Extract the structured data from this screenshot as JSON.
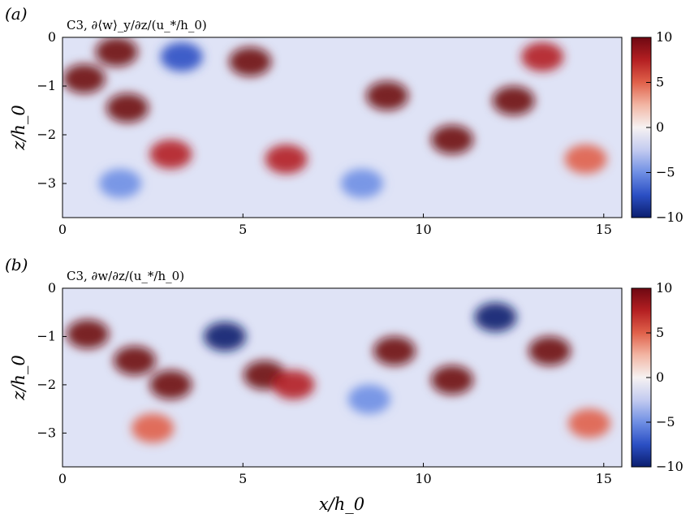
{
  "colors": {
    "colormap": [
      "#0b1e6e",
      "#2b4fc4",
      "#6f8fe4",
      "#c3cbf0",
      "#f6f2f2",
      "#f2b6a4",
      "#e0614a",
      "#b41f22",
      "#6e0812"
    ],
    "frame": "#000000",
    "background": "#ffffff"
  },
  "chart_data": [
    {
      "type": "heatmap",
      "panel": "(a)",
      "title": "C3, ∂⟨w⟩_y/∂z/(u_*/h_0)",
      "xlabel": "",
      "ylabel": "z/h_0",
      "xlim": [
        0,
        15.5
      ],
      "ylim": [
        -3.7,
        0
      ],
      "xticks": [
        0,
        5,
        10,
        15
      ],
      "yticks": [
        0,
        -1,
        -2,
        -3
      ],
      "colorbar": {
        "range": [
          -10,
          10
        ],
        "ticks": [
          10,
          5,
          0,
          -5,
          -10
        ]
      },
      "features": [
        {
          "x": 0.6,
          "z": -0.85,
          "value": 10
        },
        {
          "x": 1.8,
          "z": -1.45,
          "value": 10
        },
        {
          "x": 1.5,
          "z": -0.3,
          "value": 9
        },
        {
          "x": 3.3,
          "z": -0.4,
          "value": -8
        },
        {
          "x": 3.0,
          "z": -2.4,
          "value": 8
        },
        {
          "x": 5.2,
          "z": -0.5,
          "value": 10
        },
        {
          "x": 6.2,
          "z": -2.5,
          "value": 8
        },
        {
          "x": 9.0,
          "z": -1.2,
          "value": 10
        },
        {
          "x": 10.8,
          "z": -2.1,
          "value": 10
        },
        {
          "x": 12.5,
          "z": -1.3,
          "value": 10
        },
        {
          "x": 13.3,
          "z": -0.4,
          "value": 8
        },
        {
          "x": 14.5,
          "z": -2.5,
          "value": 6
        },
        {
          "x": 1.6,
          "z": -3.0,
          "value": -5
        },
        {
          "x": 8.3,
          "z": -3.0,
          "value": -6
        }
      ]
    },
    {
      "type": "heatmap",
      "panel": "(b)",
      "title": "C3, ∂w/∂z/(u_*/h_0)",
      "xlabel": "x/h_0",
      "ylabel": "z/h_0",
      "xlim": [
        0,
        15.5
      ],
      "ylim": [
        -3.7,
        0
      ],
      "xticks": [
        0,
        5,
        10,
        15
      ],
      "yticks": [
        0,
        -1,
        -2,
        -3
      ],
      "colorbar": {
        "range": [
          -10,
          10
        ],
        "ticks": [
          10,
          5,
          0,
          -5,
          -10
        ]
      },
      "features": [
        {
          "x": 0.7,
          "z": -0.95,
          "value": 10
        },
        {
          "x": 2.0,
          "z": -1.5,
          "value": 10
        },
        {
          "x": 3.0,
          "z": -2.0,
          "value": 9
        },
        {
          "x": 4.5,
          "z": -1.0,
          "value": -9
        },
        {
          "x": 5.6,
          "z": -1.8,
          "value": 10
        },
        {
          "x": 6.4,
          "z": -2.0,
          "value": 8
        },
        {
          "x": 9.2,
          "z": -1.3,
          "value": 10
        },
        {
          "x": 10.8,
          "z": -1.9,
          "value": 10
        },
        {
          "x": 13.5,
          "z": -1.3,
          "value": 10
        },
        {
          "x": 12.0,
          "z": -0.6,
          "value": -10
        },
        {
          "x": 14.6,
          "z": -2.8,
          "value": 6
        },
        {
          "x": 8.5,
          "z": -2.3,
          "value": -6
        },
        {
          "x": 2.5,
          "z": -2.9,
          "value": 5
        }
      ]
    }
  ]
}
